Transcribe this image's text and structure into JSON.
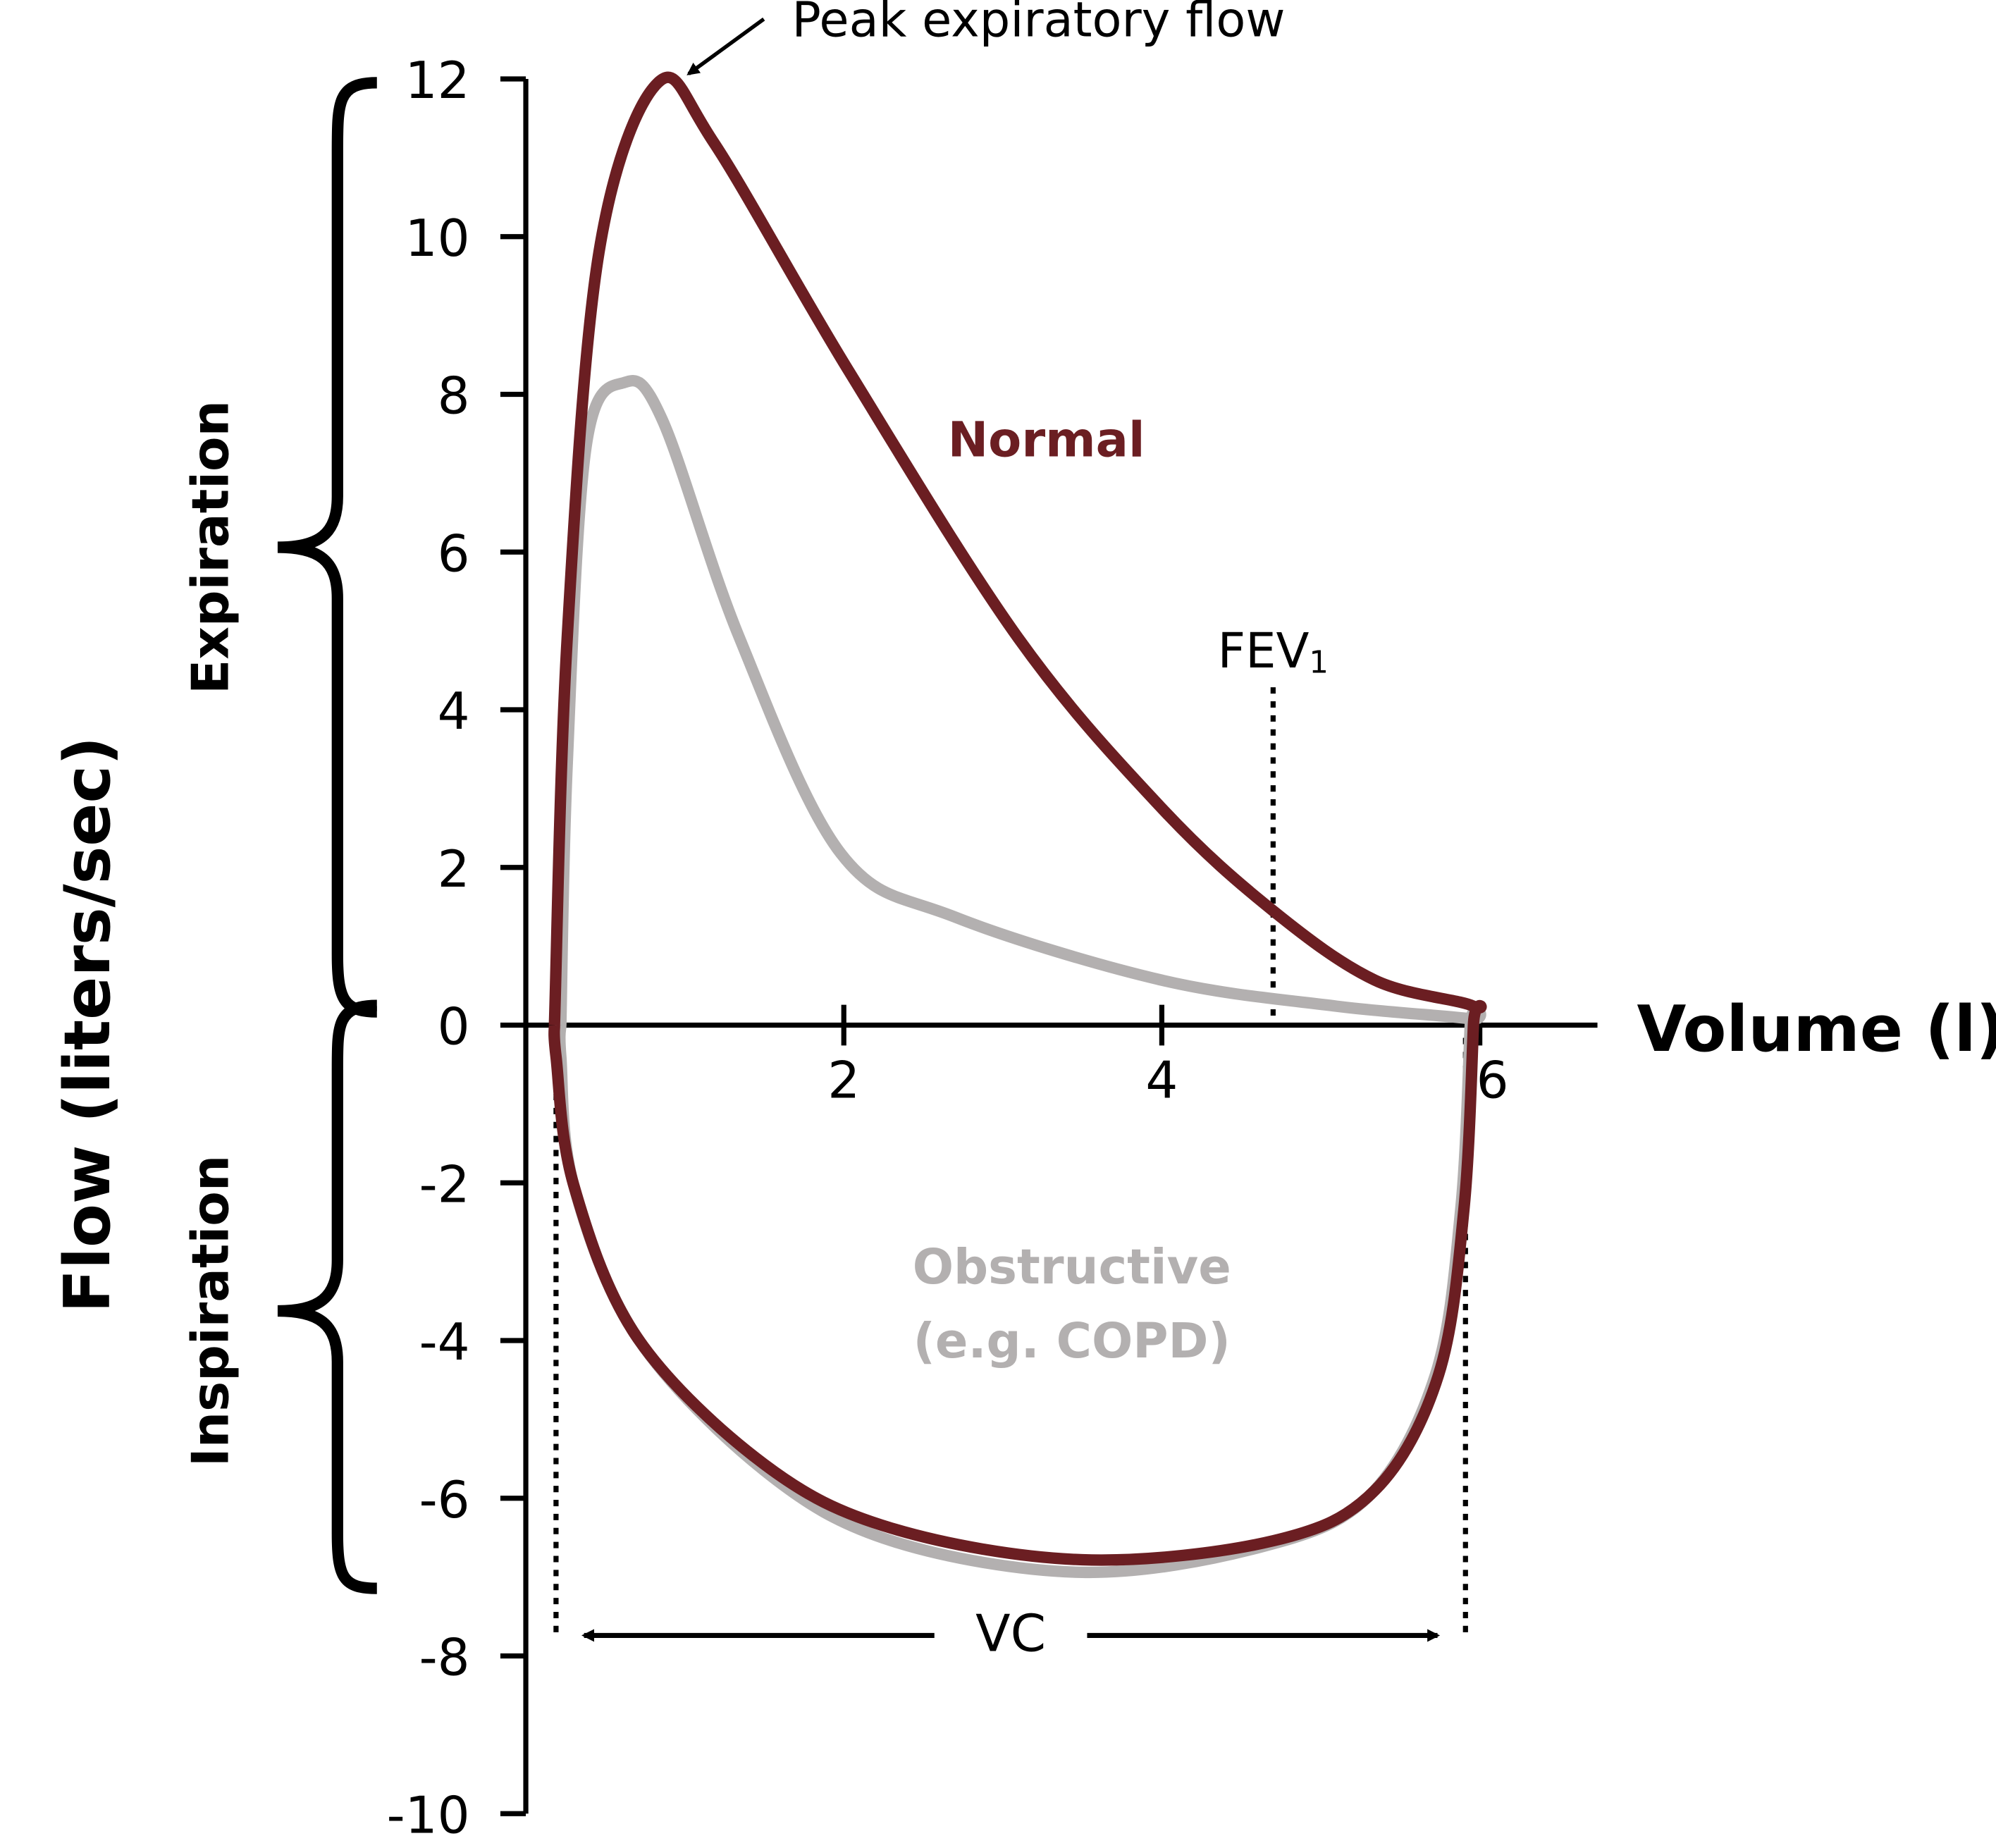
{
  "chart_data": {
    "type": "line",
    "xlabel": "Volume (l)",
    "ylabel": "Flow (liters/sec)",
    "xlim": [
      0,
      6.74
    ],
    "xticks": [
      2,
      4,
      6
    ],
    "ylim": [
      -10,
      12
    ],
    "yticks": [
      -10,
      -8,
      -6,
      -4,
      -2,
      0,
      2,
      4,
      6,
      8,
      10,
      12
    ],
    "series": [
      {
        "name": "Normal",
        "color": "#6b1e22",
        "x": [
          0.18,
          0.26,
          0.46,
          0.83,
          1.18,
          2.03,
          3.1,
          4.0,
          4.7,
          5.34,
          5.96,
          5.96,
          5.9,
          5.74,
          5.34,
          4.7,
          3.5,
          2.3,
          1.5,
          0.7,
          0.3,
          0.19,
          0.18
        ],
        "values": [
          0,
          4.9,
          9.8,
          11.95,
          11.2,
          8.3,
          4.9,
          2.75,
          1.45,
          0.57,
          0.24,
          0,
          -2.34,
          -4.44,
          -5.9,
          -6.54,
          -6.78,
          -6.38,
          -5.57,
          -3.96,
          -2.02,
          -0.4,
          0
        ]
      },
      {
        "name": "Obstructive (e.g. COPD)",
        "color": "#b3b0b0",
        "x": [
          0.22,
          0.26,
          0.38,
          0.62,
          0.86,
          1.34,
          1.98,
          2.7,
          4.0,
          5.1,
          5.94,
          5.94,
          5.88,
          5.72,
          5.3,
          4.62,
          3.5,
          2.3,
          1.5,
          0.7,
          0.3,
          0.22,
          0.22
        ],
        "values": [
          0,
          3.3,
          7.35,
          8.15,
          7.67,
          4.93,
          2.18,
          1.37,
          0.57,
          0.24,
          0.08,
          0,
          -2.34,
          -4.44,
          -5.98,
          -6.62,
          -6.94,
          -6.54,
          -5.65,
          -3.96,
          -2.02,
          -0.4,
          0
        ]
      }
    ],
    "annotations": {
      "peak": "Peak expiratory flow",
      "fev1": {
        "label": "FEV",
        "subscript": "1",
        "x": 4.7
      },
      "vc": {
        "label": "VC",
        "x": [
          0.19,
          5.91
        ]
      },
      "expiration": "Expiration",
      "inspiration": "Inspiration"
    }
  }
}
